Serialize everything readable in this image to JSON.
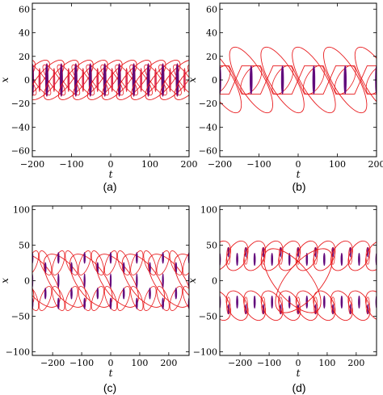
{
  "chart_data": [
    {
      "type": "contour",
      "panel_label": "(a)",
      "xlabel": "t",
      "ylabel": "x",
      "xlim": [
        -200,
        200
      ],
      "ylim": [
        -65,
        65
      ],
      "xticks": [
        "-200",
        "-100",
        "0",
        "100",
        "200"
      ],
      "yticks": [
        "-60",
        "-40",
        "-20",
        "0",
        "20",
        "40",
        "60"
      ],
      "pattern": "periodic-breather",
      "period": 37,
      "amplitude": 22,
      "colors": {
        "outline": "#e8191c",
        "core": "#5b0a7a"
      }
    },
    {
      "type": "contour",
      "panel_label": "(b)",
      "xlabel": "t",
      "ylabel": "x",
      "xlim": [
        -200,
        200
      ],
      "ylim": [
        -65,
        65
      ],
      "xticks": [
        "-200",
        "-100",
        "0",
        "100",
        "200"
      ],
      "yticks": [
        "-60",
        "-40",
        "-20",
        "0",
        "20",
        "40",
        "60"
      ],
      "pattern": "periodic-lattice",
      "period": 80,
      "amplitude": 30,
      "colors": {
        "outline": "#e8191c",
        "core": "#5b0a7a"
      }
    },
    {
      "type": "contour",
      "panel_label": "(c)",
      "xlabel": "t",
      "ylabel": "x",
      "xlim": [
        -270,
        270
      ],
      "ylim": [
        -105,
        105
      ],
      "xticks": [
        "-200",
        "-100",
        "0",
        "100",
        "200"
      ],
      "yticks": [
        "-100",
        "-50",
        "0",
        "50",
        "100"
      ],
      "pattern": "two-lobe-lattice",
      "period": 90,
      "amplitude": 48,
      "colors": {
        "outline": "#e8191c",
        "core": "#5b0a7a"
      }
    },
    {
      "type": "contour",
      "panel_label": "(d)",
      "xlabel": "t",
      "ylabel": "x",
      "xlim": [
        -270,
        270
      ],
      "ylim": [
        -105,
        105
      ],
      "xticks": [
        "-200",
        "-100",
        "0",
        "100",
        "200"
      ],
      "yticks": [
        "-100",
        "-50",
        "0",
        "50",
        "100"
      ],
      "pattern": "split-lattice",
      "period": 60,
      "amplitude": 55,
      "colors": {
        "outline": "#e8191c",
        "core": "#5b0a7a"
      }
    }
  ]
}
